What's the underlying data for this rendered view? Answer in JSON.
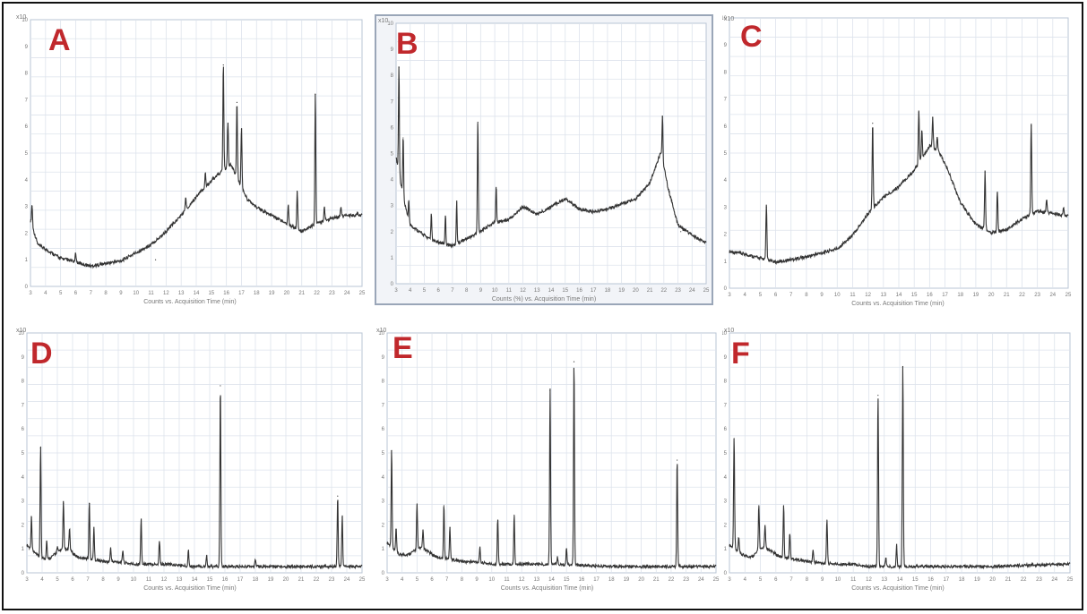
{
  "figure": {
    "panels": [
      {
        "label": "A",
        "xlabel": "Counts vs. Acquisition Time (min)",
        "ylabel": "x10"
      },
      {
        "label": "B",
        "xlabel": "Counts (%) vs. Acquisition Time (min)",
        "ylabel": "x10"
      },
      {
        "label": "C",
        "xlabel": "Counts vs. Acquisition Time (min)",
        "ylabel": "x10"
      },
      {
        "label": "D",
        "xlabel": "Counts vs. Acquisition Time (min)",
        "ylabel": "x10"
      },
      {
        "label": "E",
        "xlabel": "Counts vs. Acquisition Time (min)",
        "ylabel": "x10"
      },
      {
        "label": "F",
        "xlabel": "Counts vs. Acquisition Time (min)",
        "ylabel": "x10"
      }
    ]
  },
  "chart_data": [
    {
      "type": "line",
      "panel": "A",
      "title": "",
      "xlabel": "Counts vs. Acquisition Time (min)",
      "ylabel": "",
      "xlim": [
        3,
        25
      ],
      "ylim": [
        0,
        10
      ],
      "grid": true,
      "baseline": [
        [
          3,
          2.4
        ],
        [
          3.5,
          1.5
        ],
        [
          5,
          1.0
        ],
        [
          7,
          0.7
        ],
        [
          9,
          0.9
        ],
        [
          11,
          1.5
        ],
        [
          12,
          2.0
        ],
        [
          13,
          2.6
        ],
        [
          14,
          3.3
        ],
        [
          15,
          3.9
        ],
        [
          15.8,
          4.3
        ],
        [
          16.3,
          4.5
        ],
        [
          16.8,
          3.9
        ],
        [
          17.4,
          3.2
        ],
        [
          18,
          2.9
        ],
        [
          19,
          2.6
        ],
        [
          20,
          2.3
        ],
        [
          21,
          2.0
        ],
        [
          22,
          2.3
        ],
        [
          23,
          2.5
        ],
        [
          24,
          2.6
        ],
        [
          25,
          2.6
        ]
      ],
      "peaks": [
        [
          3.1,
          3.0
        ],
        [
          6.0,
          1.2
        ],
        [
          11.3,
          1.0
        ],
        [
          13.3,
          3.3
        ],
        [
          14.6,
          4.2
        ],
        [
          15.8,
          8.3
        ],
        [
          16.1,
          6.1
        ],
        [
          16.7,
          6.9
        ],
        [
          17.0,
          5.9
        ],
        [
          20.1,
          3.0
        ],
        [
          20.7,
          3.5
        ],
        [
          21.9,
          7.2
        ],
        [
          22.5,
          2.9
        ],
        [
          23.6,
          2.9
        ],
        [
          24.7,
          2.7
        ]
      ]
    },
    {
      "type": "line",
      "panel": "B",
      "title": "",
      "xlabel": "Counts (%) vs. Acquisition Time (min)",
      "ylabel": "",
      "xlim": [
        3,
        25
      ],
      "ylim": [
        0,
        10
      ],
      "grid": true,
      "baseline": [
        [
          3,
          4.8
        ],
        [
          3.6,
          3.0
        ],
        [
          4,
          2.2
        ],
        [
          5.5,
          1.6
        ],
        [
          7,
          1.4
        ],
        [
          8.5,
          1.8
        ],
        [
          10,
          2.3
        ],
        [
          11,
          2.4
        ],
        [
          12,
          2.9
        ],
        [
          13,
          2.6
        ],
        [
          14,
          2.9
        ],
        [
          15,
          3.2
        ],
        [
          16,
          2.8
        ],
        [
          17,
          2.7
        ],
        [
          18,
          2.8
        ],
        [
          19,
          3.0
        ],
        [
          20,
          3.2
        ],
        [
          21,
          3.8
        ],
        [
          21.8,
          5.0
        ],
        [
          22.3,
          3.6
        ],
        [
          23,
          2.2
        ],
        [
          24,
          1.8
        ],
        [
          25,
          1.5
        ]
      ],
      "peaks": [
        [
          3.2,
          8.3
        ],
        [
          3.5,
          5.6
        ],
        [
          3.9,
          3.1
        ],
        [
          5.5,
          2.6
        ],
        [
          6.5,
          2.6
        ],
        [
          7.3,
          3.1
        ],
        [
          8.8,
          6.2
        ],
        [
          10.1,
          3.7
        ],
        [
          14.4,
          3.0
        ],
        [
          21.9,
          6.4
        ],
        [
          23.2,
          2.0
        ]
      ]
    },
    {
      "type": "line",
      "panel": "C",
      "title": "",
      "xlabel": "Counts vs. Acquisition Time (min)",
      "ylabel": "",
      "xlim": [
        3,
        25
      ],
      "ylim": [
        0,
        10
      ],
      "grid": true,
      "baseline": [
        [
          3,
          1.3
        ],
        [
          4,
          1.2
        ],
        [
          6,
          0.9
        ],
        [
          8,
          1.1
        ],
        [
          10,
          1.4
        ],
        [
          11,
          1.9
        ],
        [
          12,
          2.7
        ],
        [
          13,
          3.3
        ],
        [
          14,
          3.7
        ],
        [
          15,
          4.3
        ],
        [
          15.6,
          4.8
        ],
        [
          16,
          5.2
        ],
        [
          16.6,
          5.0
        ],
        [
          17.2,
          4.3
        ],
        [
          18,
          3.1
        ],
        [
          19,
          2.3
        ],
        [
          20,
          2.0
        ],
        [
          21,
          2.1
        ],
        [
          22,
          2.5
        ],
        [
          23,
          2.8
        ],
        [
          24,
          2.7
        ],
        [
          25,
          2.6
        ]
      ],
      "peaks": [
        [
          5.4,
          3.0
        ],
        [
          12.3,
          6.1
        ],
        [
          15.3,
          6.5
        ],
        [
          15.5,
          5.8
        ],
        [
          16.2,
          6.3
        ],
        [
          16.5,
          5.5
        ],
        [
          19.6,
          4.3
        ],
        [
          20.4,
          3.5
        ],
        [
          22.6,
          6.0
        ],
        [
          23.6,
          3.2
        ],
        [
          24.7,
          2.9
        ]
      ]
    },
    {
      "type": "line",
      "panel": "D",
      "title": "",
      "xlabel": "Counts vs. Acquisition Time (min)",
      "ylabel": "",
      "xlim": [
        3,
        25
      ],
      "ylim": [
        0,
        10
      ],
      "grid": true,
      "baseline": [
        [
          3,
          1.1
        ],
        [
          3.8,
          0.6
        ],
        [
          4.4,
          0.5
        ],
        [
          5.2,
          0.9
        ],
        [
          5.8,
          0.9
        ],
        [
          6.3,
          0.6
        ],
        [
          7.3,
          0.5
        ],
        [
          8.2,
          0.4
        ],
        [
          9,
          0.4
        ],
        [
          10,
          0.3
        ],
        [
          11,
          0.3
        ],
        [
          12,
          0.3
        ],
        [
          14,
          0.2
        ],
        [
          16,
          0.2
        ],
        [
          18,
          0.2
        ],
        [
          20,
          0.2
        ],
        [
          22,
          0.2
        ],
        [
          25,
          0.2
        ]
      ],
      "peaks": [
        [
          3.3,
          2.3
        ],
        [
          3.9,
          5.2
        ],
        [
          4.3,
          1.3
        ],
        [
          5.0,
          1.0
        ],
        [
          5.4,
          2.9
        ],
        [
          5.8,
          1.8
        ],
        [
          7.1,
          2.9
        ],
        [
          7.4,
          1.8
        ],
        [
          8.5,
          1.0
        ],
        [
          9.3,
          0.9
        ],
        [
          10.5,
          2.2
        ],
        [
          11.7,
          1.3
        ],
        [
          13.6,
          0.9
        ],
        [
          14.8,
          0.7
        ],
        [
          15.7,
          7.8
        ],
        [
          18.0,
          0.5
        ],
        [
          23.4,
          3.2
        ],
        [
          23.7,
          2.3
        ]
      ]
    },
    {
      "type": "line",
      "panel": "E",
      "title": "",
      "xlabel": "Counts vs. Acquisition Time (min)",
      "ylabel": "",
      "xlim": [
        3,
        25
      ],
      "ylim": [
        0,
        10
      ],
      "grid": true,
      "baseline": [
        [
          3,
          1.2
        ],
        [
          3.8,
          0.7
        ],
        [
          4.4,
          0.7
        ],
        [
          5.2,
          1.0
        ],
        [
          5.8,
          0.8
        ],
        [
          6.3,
          0.6
        ],
        [
          7.3,
          0.5
        ],
        [
          8.2,
          0.4
        ],
        [
          9,
          0.4
        ],
        [
          10,
          0.3
        ],
        [
          11,
          0.3
        ],
        [
          12,
          0.3
        ],
        [
          14,
          0.3
        ],
        [
          16,
          0.25
        ],
        [
          18,
          0.2
        ],
        [
          20,
          0.2
        ],
        [
          22,
          0.2
        ],
        [
          25,
          0.2
        ]
      ],
      "peaks": [
        [
          3.3,
          5.1
        ],
        [
          3.6,
          1.8
        ],
        [
          5.0,
          2.8
        ],
        [
          5.4,
          1.7
        ],
        [
          6.8,
          2.8
        ],
        [
          7.2,
          1.9
        ],
        [
          9.2,
          1.0
        ],
        [
          10.4,
          2.2
        ],
        [
          11.5,
          2.4
        ],
        [
          13.9,
          7.6
        ],
        [
          14.4,
          0.6
        ],
        [
          15.0,
          1.0
        ],
        [
          15.5,
          8.8
        ],
        [
          22.4,
          4.7
        ]
      ]
    },
    {
      "type": "line",
      "panel": "F",
      "title": "",
      "xlabel": "Counts vs. Acquisition Time (min)",
      "ylabel": "",
      "xlim": [
        3,
        25
      ],
      "ylim": [
        0,
        10
      ],
      "grid": true,
      "baseline": [
        [
          3,
          1.1
        ],
        [
          3.8,
          0.7
        ],
        [
          4.4,
          0.6
        ],
        [
          5.2,
          1.0
        ],
        [
          5.8,
          0.8
        ],
        [
          6.3,
          0.6
        ],
        [
          7.3,
          0.5
        ],
        [
          8.2,
          0.4
        ],
        [
          9,
          0.35
        ],
        [
          10,
          0.3
        ],
        [
          11,
          0.3
        ],
        [
          12,
          0.2
        ],
        [
          14,
          0.2
        ],
        [
          16,
          0.2
        ],
        [
          18,
          0.2
        ],
        [
          20,
          0.2
        ],
        [
          22,
          0.25
        ],
        [
          25,
          0.3
        ]
      ],
      "peaks": [
        [
          3.3,
          5.6
        ],
        [
          3.6,
          1.4
        ],
        [
          4.9,
          2.8
        ],
        [
          5.3,
          1.9
        ],
        [
          6.5,
          2.8
        ],
        [
          6.9,
          1.6
        ],
        [
          8.4,
          0.9
        ],
        [
          9.3,
          2.2
        ],
        [
          12.6,
          7.4
        ],
        [
          13.1,
          0.6
        ],
        [
          13.8,
          1.1
        ],
        [
          14.2,
          8.6
        ]
      ]
    }
  ]
}
